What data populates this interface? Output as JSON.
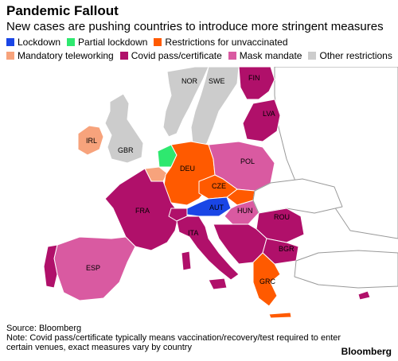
{
  "title": "Pandemic Fallout",
  "subtitle": "New cases are pushing countries to introduce more stringent measures",
  "legend": [
    {
      "label": "Lockdown",
      "color": "#1a46e6"
    },
    {
      "label": "Partial lockdown",
      "color": "#2ee86f"
    },
    {
      "label": "Restrictions for unvaccinated",
      "color": "#ff5a00"
    },
    {
      "label": "Mandatory teleworking",
      "color": "#f7a37c"
    },
    {
      "label": "Covid pass/certificate",
      "color": "#b0106a"
    },
    {
      "label": "Mask mandate",
      "color": "#d95aa1"
    },
    {
      "label": "Other restrictions",
      "color": "#cccccc"
    }
  ],
  "countries": {
    "NOR": "NOR",
    "SWE": "SWE",
    "FIN": "FIN",
    "LVA": "LVA",
    "IRL": "IRL",
    "GBR": "GBR",
    "DEU": "DEU",
    "POL": "POL",
    "CZE": "CZE",
    "FRA": "FRA",
    "AUT": "AUT",
    "HUN": "HUN",
    "ROU": "ROU",
    "ITA": "ITA",
    "BGR": "BGR",
    "ESP": "ESP",
    "GRC": "GRC"
  },
  "footer": {
    "source": "Source: Bloomberg",
    "note": "Note: Covid pass/certificate typically means vaccination/recovery/test required to enter certain venues, exact measures vary by country"
  },
  "brand": "Bloomberg"
}
